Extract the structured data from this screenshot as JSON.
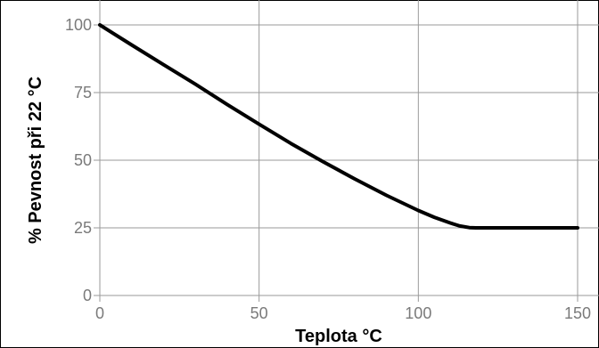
{
  "chart_data": {
    "type": "line",
    "title": "",
    "xlabel": "Teplota °C",
    "ylabel": "% Pevnost při 22 °C",
    "xlim": [
      0,
      150
    ],
    "ylim": [
      0,
      100
    ],
    "x_ticks": [
      0,
      50,
      100,
      150
    ],
    "y_ticks": [
      0,
      25,
      50,
      75,
      100
    ],
    "grid": true,
    "legend": "none",
    "series": [
      {
        "color": "#000000",
        "points": [
          [
            0,
            100
          ],
          [
            10,
            92.6
          ],
          [
            20,
            85.3
          ],
          [
            30,
            78.1
          ],
          [
            40,
            70.6
          ],
          [
            50,
            63.3
          ],
          [
            60,
            56.2
          ],
          [
            70,
            49.5
          ],
          [
            80,
            43.1
          ],
          [
            90,
            37.0
          ],
          [
            100,
            31.4
          ],
          [
            105,
            28.9
          ],
          [
            110,
            26.8
          ],
          [
            113,
            25.7
          ],
          [
            116,
            25.1
          ],
          [
            118,
            25
          ],
          [
            130,
            25
          ],
          [
            150,
            25
          ]
        ]
      }
    ]
  }
}
